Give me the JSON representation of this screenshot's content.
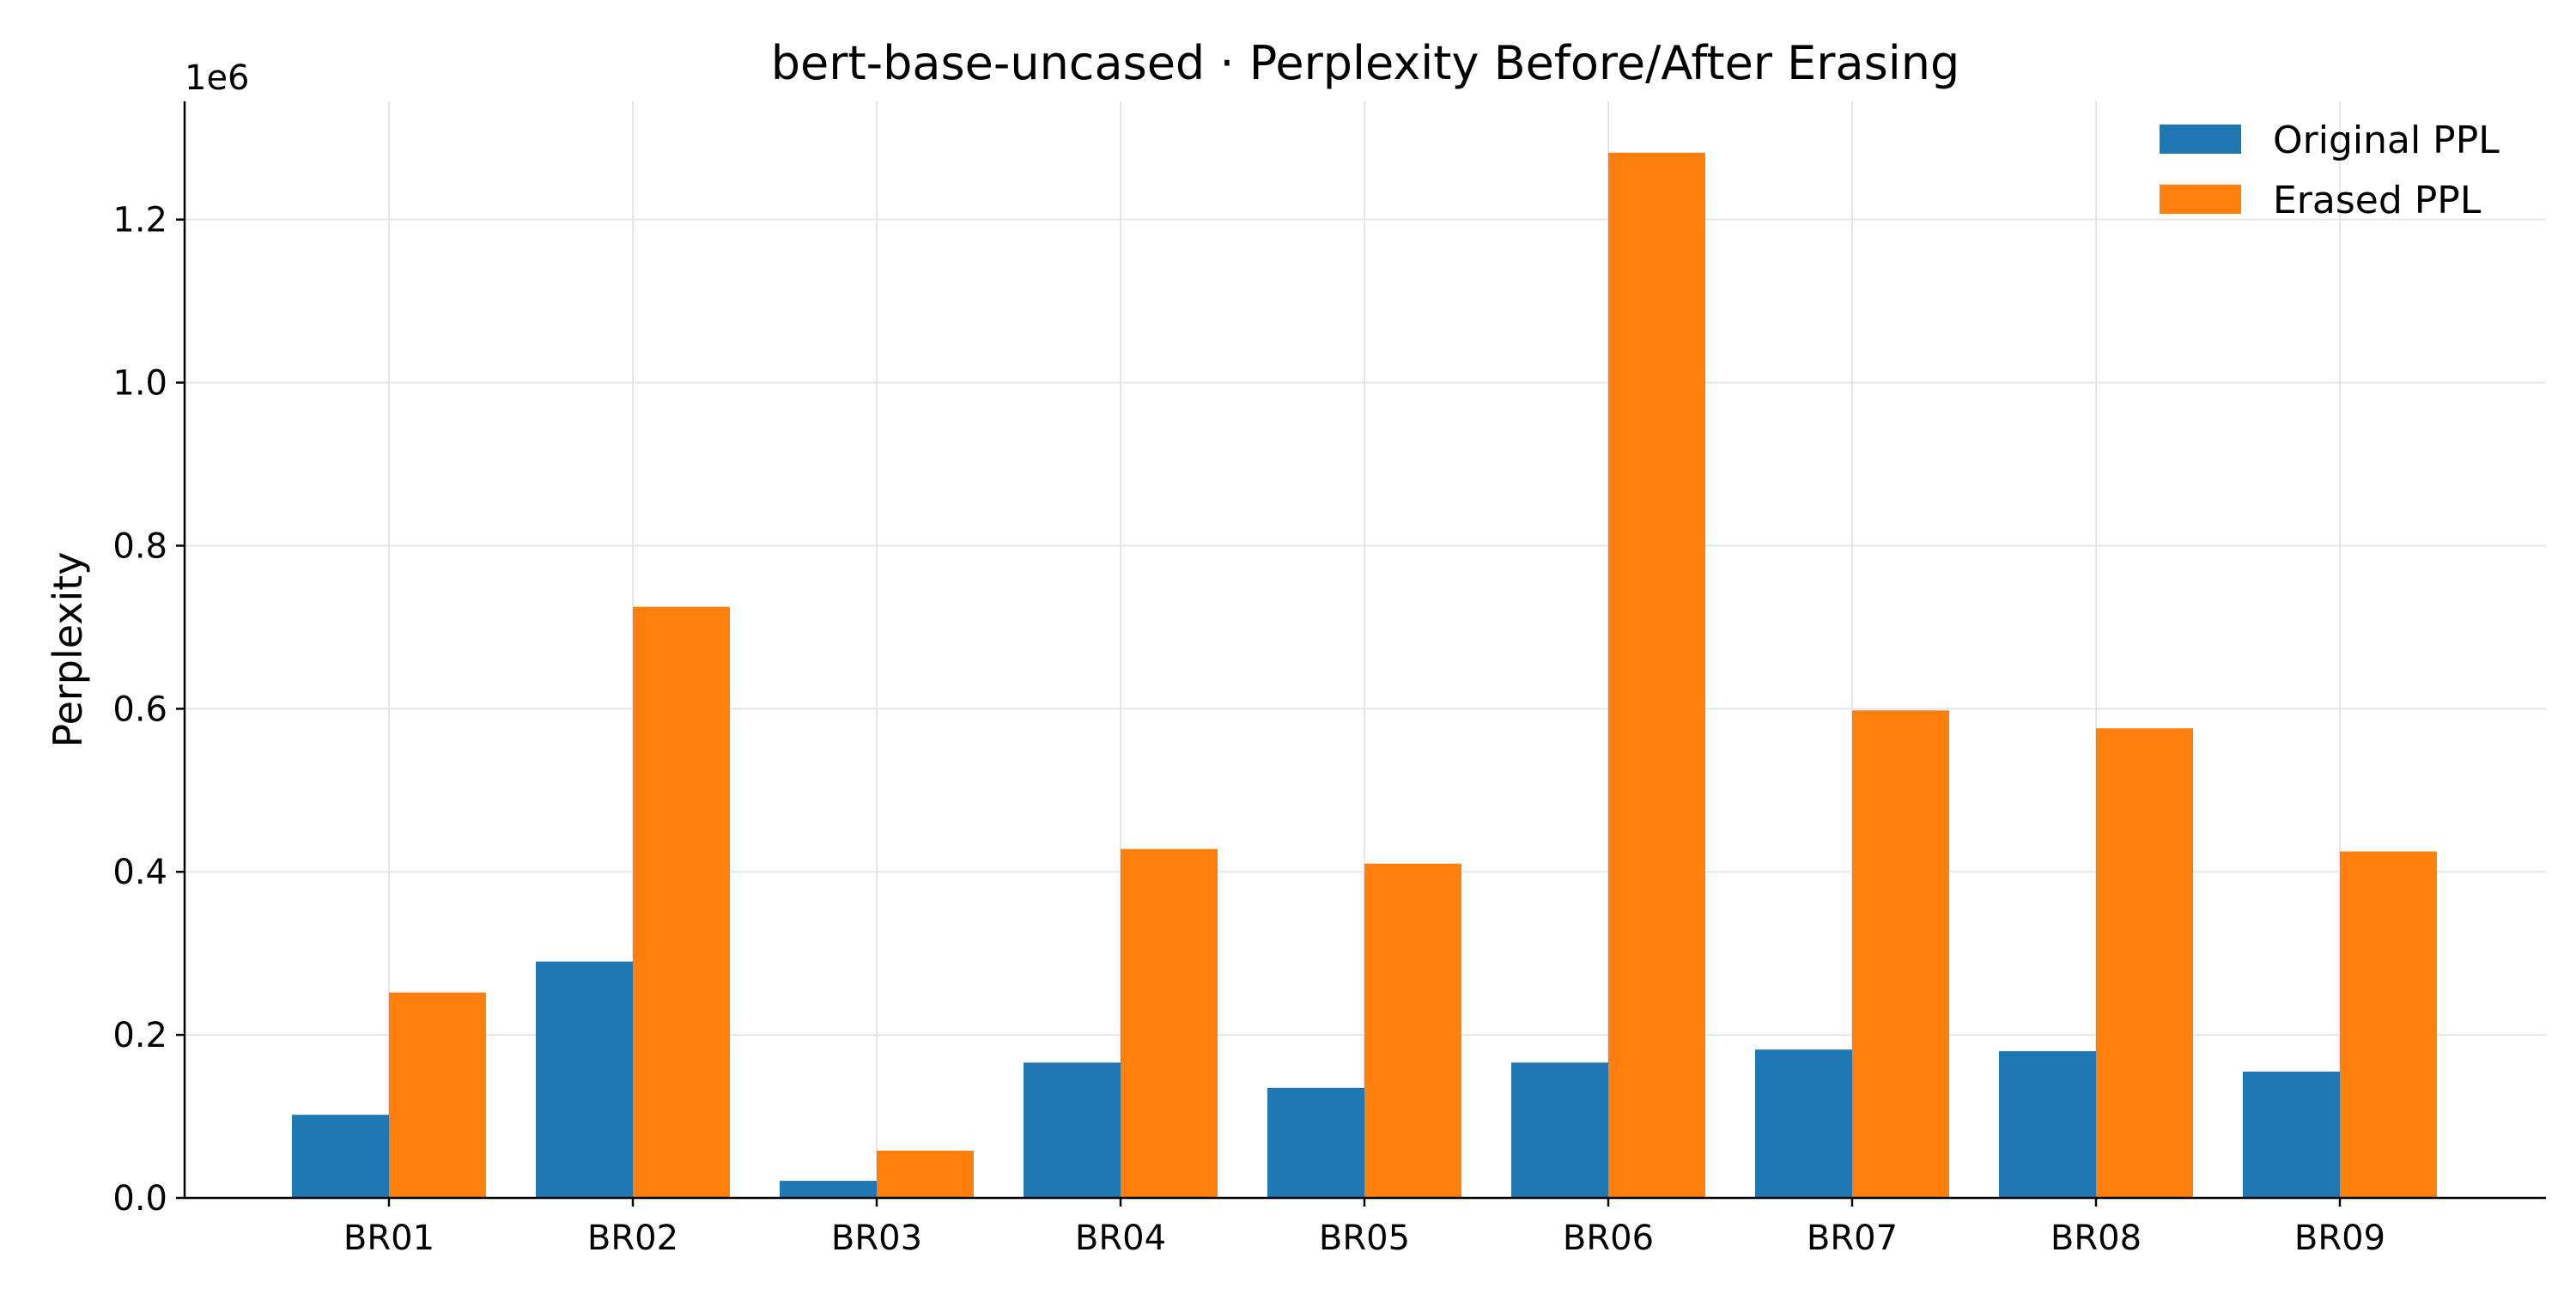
{
  "chart_data": {
    "type": "bar",
    "title": "bert-base-uncased · Perplexity Before/After Erasing",
    "xlabel": "",
    "ylabel": "Perplexity",
    "y_scale_label": "1e6",
    "ylim": [
      0,
      1.345
    ],
    "yticks": [
      0.0,
      0.2,
      0.4,
      0.6,
      0.8,
      1.0,
      1.2
    ],
    "ytick_labels": [
      "0.0",
      "0.2",
      "0.4",
      "0.6",
      "0.8",
      "1.0",
      "1.2"
    ],
    "grid": true,
    "legend_position": "top-right",
    "categories": [
      "BR01",
      "BR02",
      "BR03",
      "BR04",
      "BR05",
      "BR06",
      "BR07",
      "BR08",
      "BR09"
    ],
    "series": [
      {
        "name": "Original PPL",
        "color": "#1f77b4",
        "values": [
          0.102,
          0.29,
          0.021,
          0.166,
          0.135,
          0.166,
          0.182,
          0.18,
          0.155
        ]
      },
      {
        "name": "Erased PPL",
        "color": "#ff7f0e",
        "values": [
          0.252,
          0.725,
          0.058,
          0.428,
          0.41,
          1.282,
          0.598,
          0.576,
          0.425
        ]
      }
    ]
  }
}
